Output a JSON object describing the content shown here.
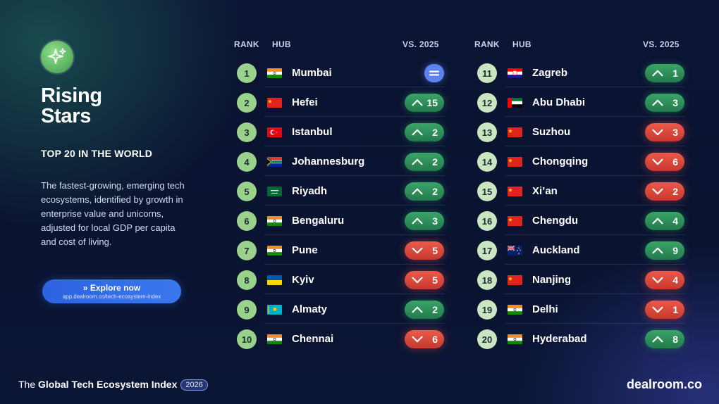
{
  "intro": {
    "title_line1": "Rising",
    "title_line2": "Stars",
    "subtitle": "TOP 20 IN THE WORLD",
    "description": "The fastest-growing, emerging tech ecosystems, identified by growth in enterprise value and unicorns, adjusted for local GDP per capita and cost of living.",
    "explore_label": "» Explore now",
    "explore_url": "app.dealroom.co/tech-ecosystem-index"
  },
  "table_headers": {
    "rank": "RANK",
    "hub": "HUB",
    "change": "VS. 2025"
  },
  "hubs": [
    {
      "rank": "1",
      "name": "Mumbai",
      "country": "india",
      "trend": "same",
      "change": ""
    },
    {
      "rank": "2",
      "name": "Hefei",
      "country": "china",
      "trend": "up",
      "change": "15"
    },
    {
      "rank": "3",
      "name": "Istanbul",
      "country": "turkey",
      "trend": "up",
      "change": "2"
    },
    {
      "rank": "4",
      "name": "Johannesburg",
      "country": "south-africa",
      "trend": "up",
      "change": "2"
    },
    {
      "rank": "5",
      "name": "Riyadh",
      "country": "saudi-arabia",
      "trend": "up",
      "change": "2"
    },
    {
      "rank": "6",
      "name": "Bengaluru",
      "country": "india",
      "trend": "up",
      "change": "3"
    },
    {
      "rank": "7",
      "name": "Pune",
      "country": "india",
      "trend": "down",
      "change": "5"
    },
    {
      "rank": "8",
      "name": "Kyiv",
      "country": "ukraine",
      "trend": "down",
      "change": "5"
    },
    {
      "rank": "9",
      "name": "Almaty",
      "country": "kazakhstan",
      "trend": "up",
      "change": "2"
    },
    {
      "rank": "10",
      "name": "Chennai",
      "country": "india",
      "trend": "down",
      "change": "6"
    },
    {
      "rank": "11",
      "name": "Zagreb",
      "country": "croatia",
      "trend": "up",
      "change": "1"
    },
    {
      "rank": "12",
      "name": "Abu Dhabi",
      "country": "uae",
      "trend": "up",
      "change": "3"
    },
    {
      "rank": "13",
      "name": "Suzhou",
      "country": "china",
      "trend": "down",
      "change": "3"
    },
    {
      "rank": "14",
      "name": "Chongqing",
      "country": "china",
      "trend": "down",
      "change": "6"
    },
    {
      "rank": "15",
      "name": "Xi’an",
      "country": "china",
      "trend": "down",
      "change": "2"
    },
    {
      "rank": "16",
      "name": "Chengdu",
      "country": "china",
      "trend": "up",
      "change": "4"
    },
    {
      "rank": "17",
      "name": "Auckland",
      "country": "new-zealand",
      "trend": "up",
      "change": "9"
    },
    {
      "rank": "18",
      "name": "Nanjing",
      "country": "china",
      "trend": "down",
      "change": "4"
    },
    {
      "rank": "19",
      "name": "Delhi",
      "country": "india",
      "trend": "down",
      "change": "1"
    },
    {
      "rank": "20",
      "name": "Hyderabad",
      "country": "india",
      "trend": "up",
      "change": "8"
    }
  ],
  "footer": {
    "prefix": "The ",
    "title": "Global Tech Ecosystem Index",
    "year": "2026",
    "brand": "dealroom.co"
  },
  "colors": {
    "up": "#2f9a5e",
    "down": "#e0493d",
    "same": "#5d83f0",
    "rank_circle": "#9ad18b"
  }
}
